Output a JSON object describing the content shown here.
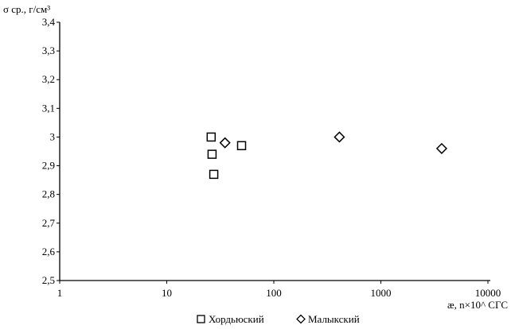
{
  "chart_data": {
    "type": "scatter",
    "ylabel": "σ ср., г/см³",
    "xlabel": "æ, n×10^ СГС",
    "x_scale": "log",
    "xlim": [
      1,
      10000
    ],
    "ylim": [
      2.5,
      3.4
    ],
    "x_ticks": [
      1,
      10,
      100,
      1000,
      10000
    ],
    "x_tick_labels": [
      "1",
      "10",
      "100",
      "1000",
      "10000"
    ],
    "y_ticks": [
      2.5,
      2.6,
      2.7,
      2.8,
      2.9,
      3.0,
      3.1,
      3.2,
      3.3,
      3.4
    ],
    "y_tick_labels": [
      "2,5",
      "2,6",
      "2,7",
      "2,8",
      "2,9",
      "3",
      "3,1",
      "3,2",
      "3,3",
      "3,4"
    ],
    "grid": false,
    "legend_position": "bottom",
    "series": [
      {
        "name": "Хордьюский",
        "marker": "square",
        "points": [
          [
            26,
            3.0
          ],
          [
            26.5,
            2.94
          ],
          [
            27.5,
            2.87
          ],
          [
            50,
            2.97
          ]
        ]
      },
      {
        "name": "Малыкский",
        "marker": "diamond",
        "points": [
          [
            35,
            2.98
          ],
          [
            410,
            3.0
          ],
          [
            3700,
            2.96
          ]
        ]
      }
    ]
  }
}
